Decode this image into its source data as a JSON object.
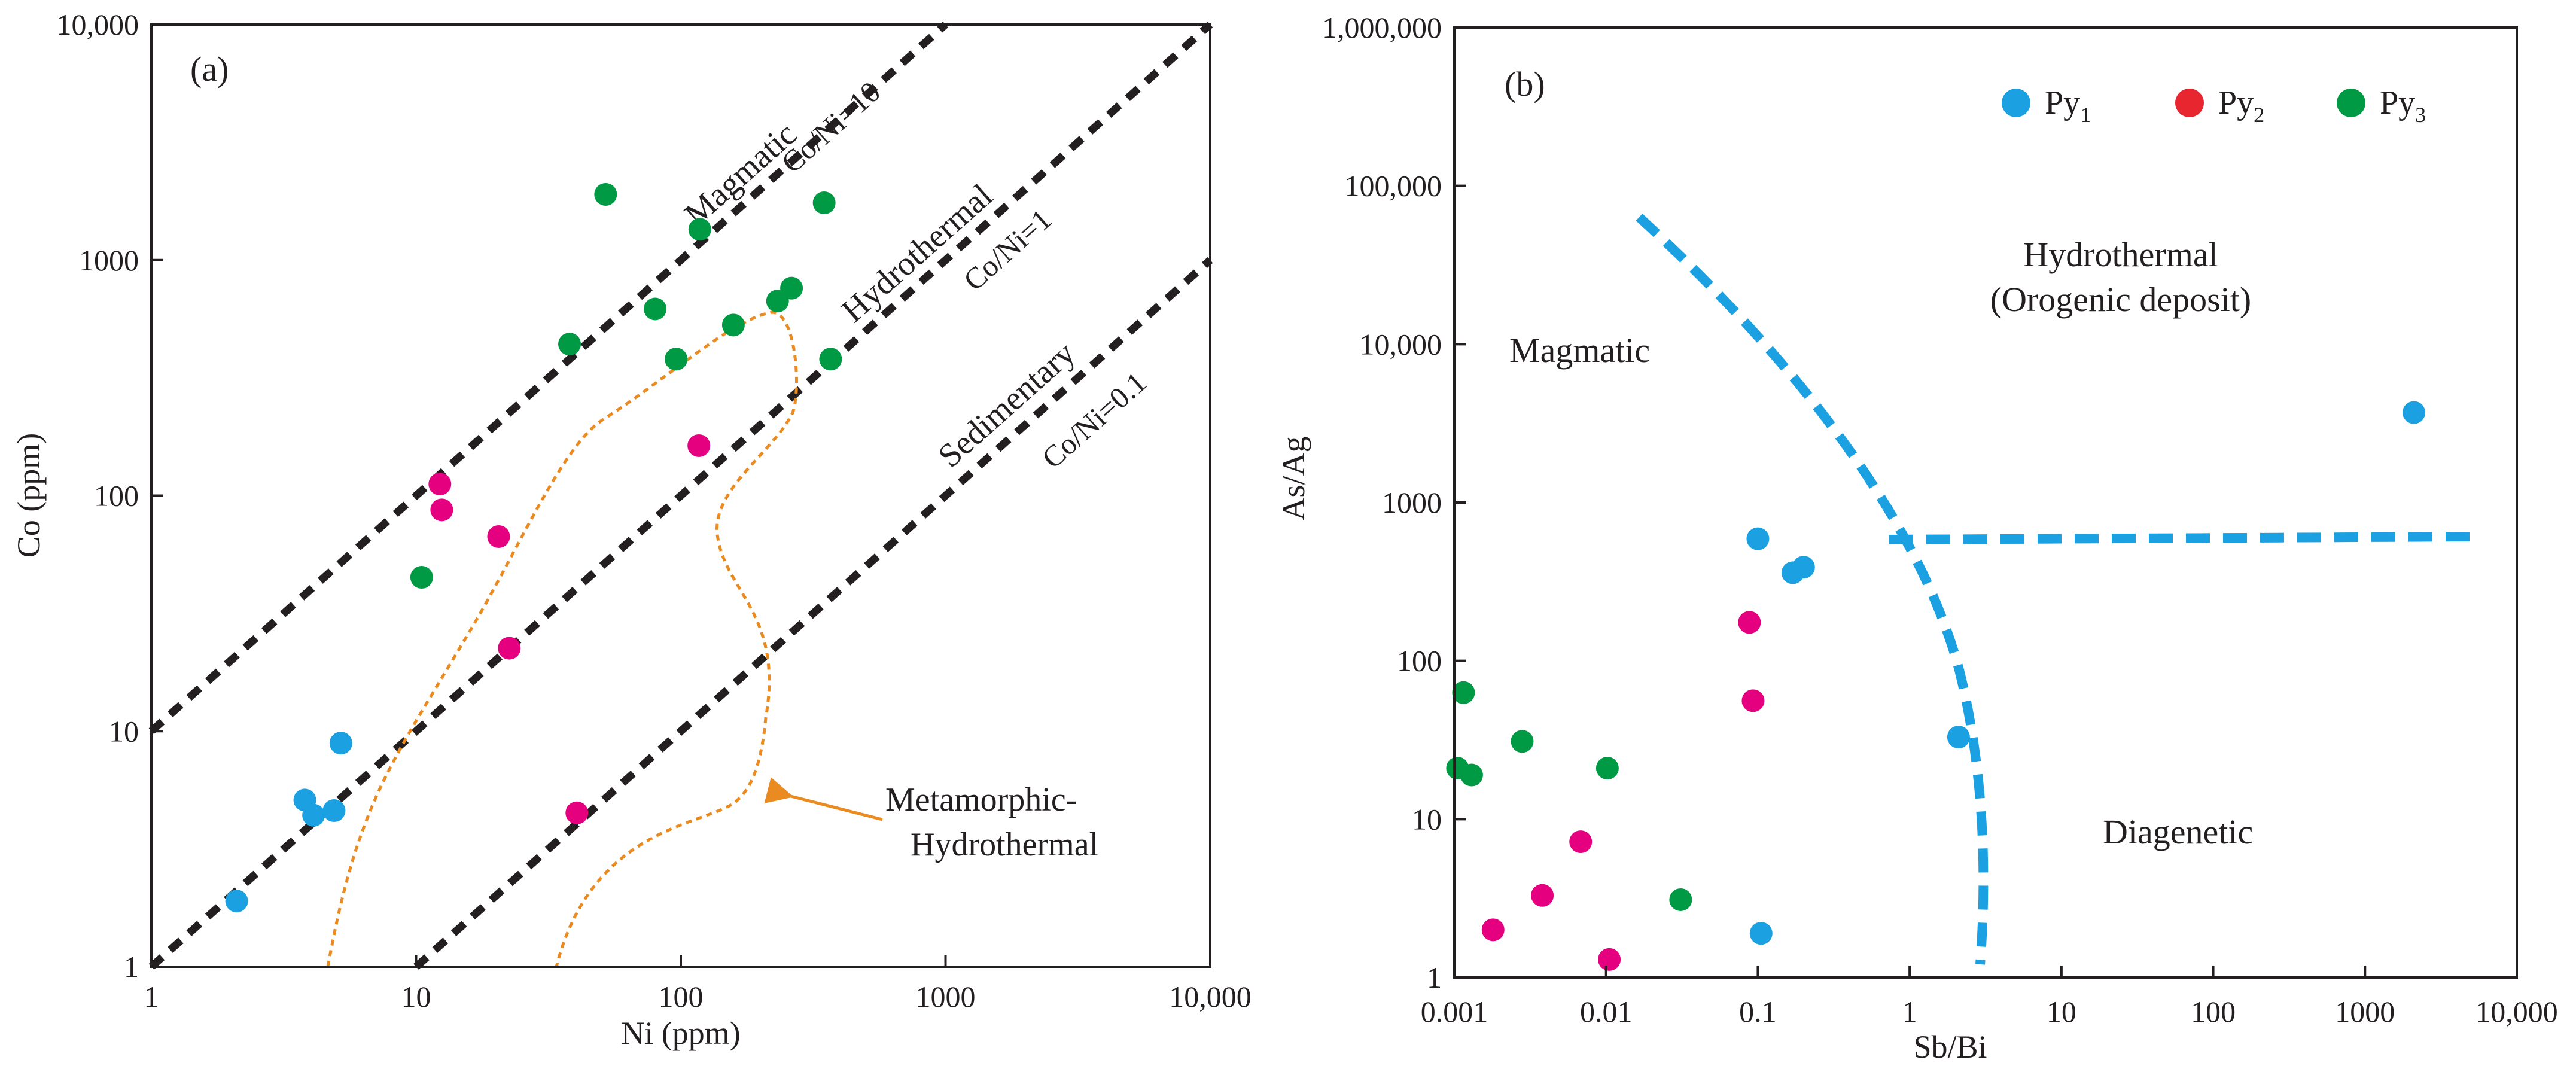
{
  "chart_data": [
    {
      "type": "scatter",
      "panel_label": "(a)",
      "title": "",
      "xlabel": "Ni (ppm)",
      "ylabel": "Co (ppm)",
      "xscale": "log",
      "yscale": "log",
      "xlim": [
        1,
        10000
      ],
      "ylim": [
        1,
        10000
      ],
      "x_ticks": [
        "1",
        "10",
        "100",
        "1000",
        "10,000"
      ],
      "y_ticks": [
        "1",
        "10",
        "100",
        "1000",
        "10,000"
      ],
      "grid": false,
      "series": [
        {
          "key": "Py1",
          "color": "#1ba1e2",
          "points": [
            [
              2.1,
              1.9
            ],
            [
              3.8,
              5.1
            ],
            [
              4.1,
              4.4
            ],
            [
              4.9,
              4.6
            ],
            [
              5.2,
              8.9
            ]
          ]
        },
        {
          "key": "Py2",
          "color": "#e4007f",
          "points": [
            [
              12.3,
              112
            ],
            [
              12.5,
              87
            ],
            [
              20.5,
              67
            ],
            [
              22.5,
              22.5
            ],
            [
              40.5,
              4.5
            ],
            [
              117,
              163
            ]
          ]
        },
        {
          "key": "Py3",
          "color": "#009a44",
          "points": [
            [
              10.5,
              45
            ],
            [
              38,
              440
            ],
            [
              52,
              1900
            ],
            [
              80,
              620
            ],
            [
              96,
              380
            ],
            [
              118,
              1350
            ],
            [
              158,
              530
            ],
            [
              232,
              670
            ],
            [
              262,
              760
            ],
            [
              348,
              1750
            ],
            [
              368,
              380
            ]
          ]
        }
      ],
      "reference_lines": [
        {
          "ratio": 10,
          "label": "Co/Ni=10",
          "field": "Magmatic"
        },
        {
          "ratio": 1,
          "label": "Co/Ni=1",
          "field": "Hydrothermal"
        },
        {
          "ratio": 0.1,
          "label": "Co/Ni=0.1",
          "field": "Sedimentary"
        }
      ],
      "field_outline": {
        "label_line1": "Metamorphic-",
        "label_line2": "Hydrothermal",
        "color": "#ea8b21"
      }
    },
    {
      "type": "scatter",
      "panel_label": "(b)",
      "title": "",
      "xlabel": "Sb/Bi",
      "ylabel": "As/Ag",
      "xscale": "log",
      "yscale": "log",
      "xlim": [
        0.001,
        10000
      ],
      "ylim": [
        1,
        1000000
      ],
      "x_ticks": [
        "0.001",
        "0.01",
        "0.1",
        "1",
        "10",
        "100",
        "1000",
        "10,000"
      ],
      "y_ticks": [
        "1",
        "10",
        "100",
        "1000",
        "10,000",
        "100,000",
        "1,000,000"
      ],
      "grid": false,
      "legend_position": "top-right",
      "legend": [
        {
          "key": "Py1",
          "label": "Py",
          "sub": "1",
          "color": "#1ba1e2"
        },
        {
          "key": "Py2",
          "label": "Py",
          "sub": "2",
          "color": "#e8262f"
        },
        {
          "key": "Py3",
          "label": "Py",
          "sub": "3",
          "color": "#009a44"
        }
      ],
      "series": [
        {
          "key": "Py1",
          "color": "#1ba1e2",
          "points": [
            [
              0.1,
              590
            ],
            [
              0.105,
              1.9
            ],
            [
              0.17,
              360
            ],
            [
              0.2,
              390
            ],
            [
              2.1,
              33
            ],
            [
              2100,
              3700
            ]
          ]
        },
        {
          "key": "Py2",
          "color": "#e4007f",
          "points": [
            [
              0.0018,
              2
            ],
            [
              0.0038,
              3.3
            ],
            [
              0.0068,
              7.2
            ],
            [
              0.0105,
              1.3
            ],
            [
              0.088,
              175
            ],
            [
              0.093,
              56
            ]
          ]
        },
        {
          "key": "Py3",
          "color": "#009a44",
          "points": [
            [
              0.00105,
              21
            ],
            [
              0.00115,
              63
            ],
            [
              0.0013,
              19
            ],
            [
              0.0028,
              31
            ],
            [
              0.0102,
              21
            ],
            [
              0.031,
              3.1
            ]
          ]
        }
      ],
      "field_labels": [
        {
          "text": "Magmatic"
        },
        {
          "text": "Hydrothermal"
        },
        {
          "text": "(Orogenic deposit)"
        },
        {
          "text": "Diagenetic"
        }
      ],
      "boundary_color": "#1ba1e2"
    }
  ]
}
